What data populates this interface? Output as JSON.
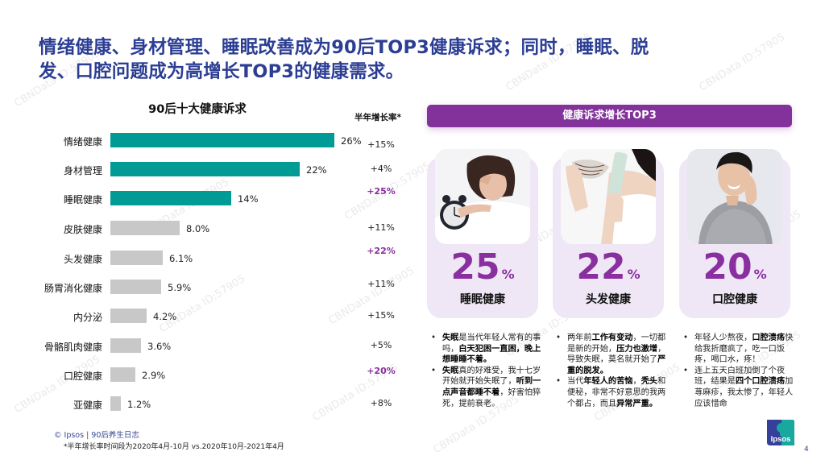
{
  "title": {
    "line1": "情绪健康、身材管理、睡眠改善成为90后TOP3健康诉求；同时，睡眠、脱",
    "line2": "发、口腔问题成为高增长TOP3的健康需求。"
  },
  "chart_data": {
    "type": "bar",
    "orientation": "horizontal",
    "title": "90后十大健康诉求",
    "categories": [
      "情绪健康",
      "身材管理",
      "睡眠健康",
      "皮肤健康",
      "头发健康",
      "肠胃消化健康",
      "内分泌",
      "骨骼肌肉健康",
      "口腔健康",
      "亚健康"
    ],
    "values": [
      26,
      22,
      14,
      8.0,
      6.1,
      5.9,
      4.2,
      3.6,
      2.9,
      1.2
    ],
    "value_labels": [
      "26%",
      "22%",
      "14%",
      "8.0%",
      "6.1%",
      "5.9%",
      "4.2%",
      "3.6%",
      "2.9%",
      "1.2%"
    ],
    "highlighted_top3_color": "#009b95",
    "other_color": "#c8c8c8",
    "secondary_column": {
      "header": "半年增长率*",
      "values": [
        "+15%",
        "+4%",
        "+25%",
        "+11%",
        "+22%",
        "+11%",
        "+15%",
        "+5%",
        "+20%",
        "+8%"
      ],
      "highlighted": [
        false,
        false,
        true,
        false,
        true,
        false,
        false,
        false,
        true,
        false
      ],
      "highlight_color": "#8a2fa0"
    },
    "xlabel": "",
    "ylabel": "",
    "unit": "%"
  },
  "footer": {
    "source": "© Ipsos | 90后养生日志",
    "note": "*半年增长率时间段为2020年4月-10月 vs.2020年10月-2021年4月",
    "page": "4",
    "logo_text": "Ipsos"
  },
  "panel": {
    "header": "健康诉求增长TOP3",
    "cards": [
      {
        "pct": "25",
        "unit": "%",
        "label": "睡眠健康",
        "photo": "woman-with-alarm-clock",
        "bullets": [
          [
            {
              "t": "失眠",
              "b": true
            },
            {
              "t": "是当代年轻人常有的事吗，",
              "b": false
            },
            {
              "t": "白天犯困一直困，晚上想睡睡不着。",
              "b": true
            }
          ],
          [
            {
              "t": "失眠",
              "b": true
            },
            {
              "t": "真的好难受，我十七岁开始就开始失眠了，",
              "b": false
            },
            {
              "t": "听到一点声音都睡不着",
              "b": true
            },
            {
              "t": "，好害怕猝死，提前衰老。",
              "b": false
            }
          ]
        ]
      },
      {
        "pct": "22",
        "unit": "%",
        "label": "头发健康",
        "photo": "woman-holding-hair-loss-comb",
        "bullets": [
          [
            {
              "t": "两年前",
              "b": false
            },
            {
              "t": "工作有变动",
              "b": true
            },
            {
              "t": "，一切都是新的开始，",
              "b": false
            },
            {
              "t": "压力也激增",
              "b": true
            },
            {
              "t": "，导致失眠，莫名就开始了",
              "b": false
            },
            {
              "t": "严重的脱发。",
              "b": true
            }
          ],
          [
            {
              "t": "当代",
              "b": false
            },
            {
              "t": "年轻人的苦恼",
              "b": true
            },
            {
              "t": "，",
              "b": false
            },
            {
              "t": "秃头",
              "b": true
            },
            {
              "t": "和便秘，非常不好意思的我两个都占，而且",
              "b": false
            },
            {
              "t": "异常严重。",
              "b": true
            }
          ]
        ]
      },
      {
        "pct": "20",
        "unit": "%",
        "label": "口腔健康",
        "photo": "man-with-toothache",
        "bullets": [
          [
            {
              "t": "年轻人少熬夜，",
              "b": false
            },
            {
              "t": "口腔溃疡",
              "b": true
            },
            {
              "t": "快给我折磨疯了，吃一口饭疼，喝口水，疼！",
              "b": false
            }
          ],
          [
            {
              "t": "连上五天白班加倒了个夜班，结果是",
              "b": false
            },
            {
              "t": "四个口腔溃疡",
              "b": true
            },
            {
              "t": "加荨麻疹，我太惨了，年轻人应该惜命",
              "b": false
            }
          ]
        ]
      }
    ]
  },
  "watermark": "CBNData ID:57905"
}
